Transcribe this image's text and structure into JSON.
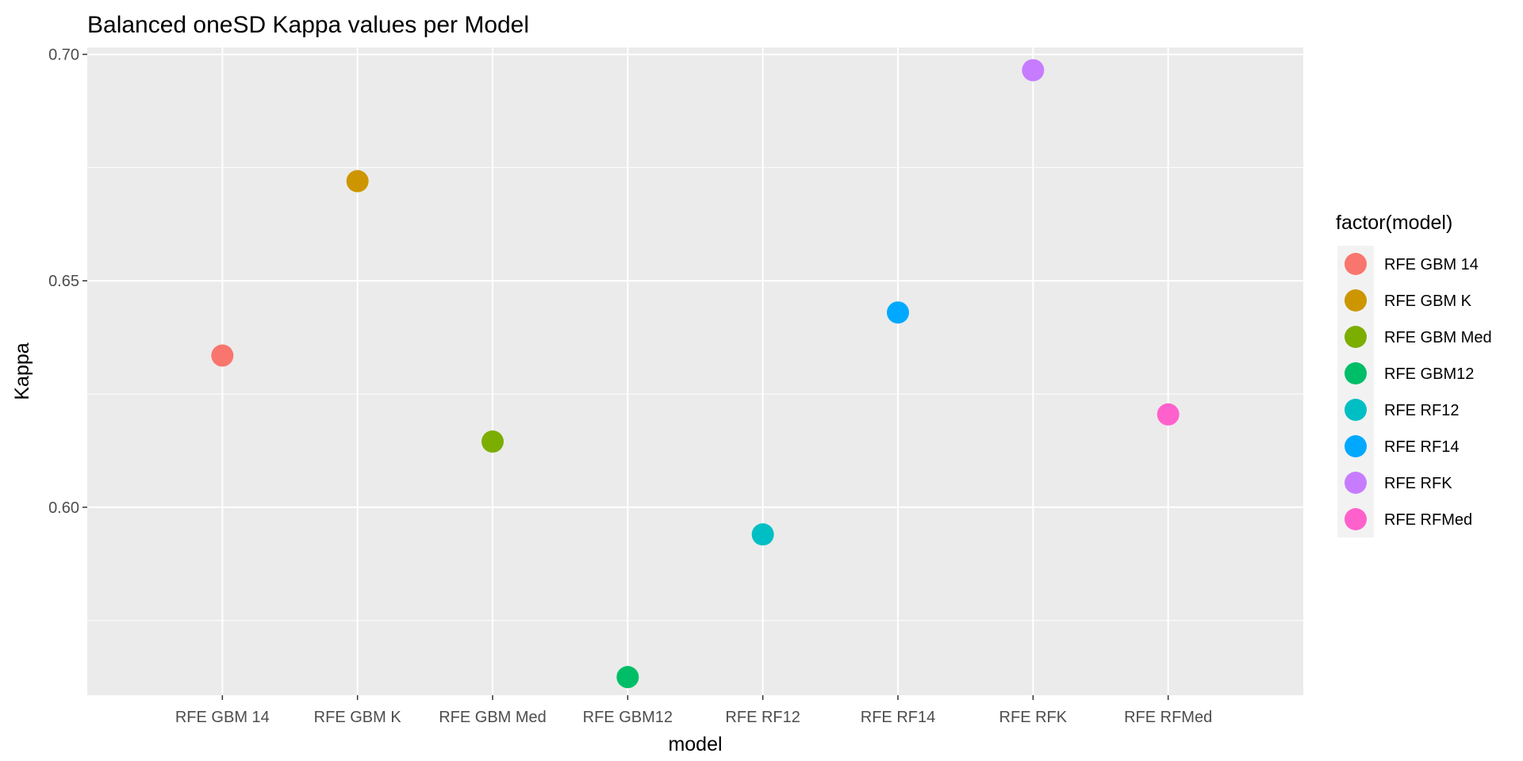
{
  "chart_data": {
    "type": "scatter",
    "title": "Balanced oneSD Kappa values per Model",
    "xlabel": "model",
    "ylabel": "Kappa",
    "categories": [
      "RFE GBM 14",
      "RFE GBM K",
      "RFE GBM Med",
      "RFE GBM12",
      "RFE RF12",
      "RFE RF14",
      "RFE RFK",
      "RFE RFMed"
    ],
    "values": [
      0.6335,
      0.672,
      0.6145,
      0.5625,
      0.594,
      0.643,
      0.6965,
      0.6205
    ],
    "colors": [
      "#F8766D",
      "#CD9600",
      "#7CAE00",
      "#00BE67",
      "#00BFC4",
      "#00A9FF",
      "#C77CFF",
      "#FF61CC"
    ],
    "ylim": [
      0.5585,
      0.7015
    ],
    "yticks": [
      0.6,
      0.65,
      0.7
    ],
    "ytick_labels": [
      "0.60",
      "0.65",
      "0.70"
    ],
    "grid": true,
    "legend": {
      "title": "factor(model)",
      "position": "right",
      "entries": [
        "RFE GBM 14",
        "RFE GBM K",
        "RFE GBM Med",
        "RFE GBM12",
        "RFE RF12",
        "RFE RF14",
        "RFE RFK",
        "RFE RFMed"
      ]
    }
  }
}
